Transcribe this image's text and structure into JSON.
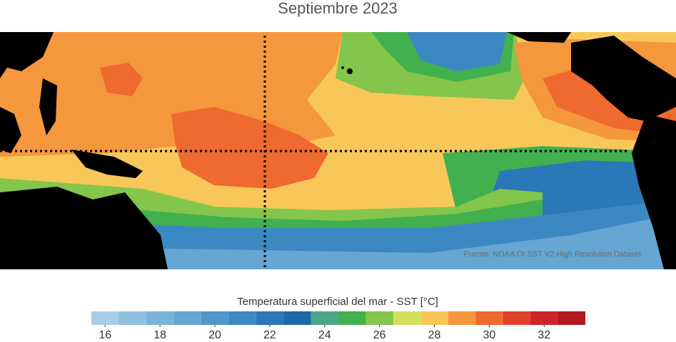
{
  "title": "Septiembre 2023",
  "source": "Fuente: NOAA OI SST V2 High Resolution Dataset",
  "colorbar": {
    "label": "Temperatura superficial del mar - SST  [°C]",
    "bins": [
      15.5,
      16.5,
      17.5,
      18.5,
      19.5,
      20.5,
      21.5,
      22.5,
      23.5,
      24.5,
      25.5,
      26.5,
      27.5,
      28.5,
      29.5,
      30.5,
      31.5,
      32.5,
      33.5
    ],
    "colors": [
      "#a7cde6",
      "#90c0e0",
      "#7ab3da",
      "#65a6d3",
      "#5197cb",
      "#3c88c2",
      "#2a78b7",
      "#1d68a8",
      "#4aa68a",
      "#42b04e",
      "#84c54b",
      "#d2e060",
      "#f7c859",
      "#f5973c",
      "#ef6a2e",
      "#e0412b",
      "#d0232b",
      "#b1191f"
    ],
    "ticks": [
      16,
      18,
      20,
      22,
      24,
      26,
      28,
      30,
      32
    ]
  }
}
